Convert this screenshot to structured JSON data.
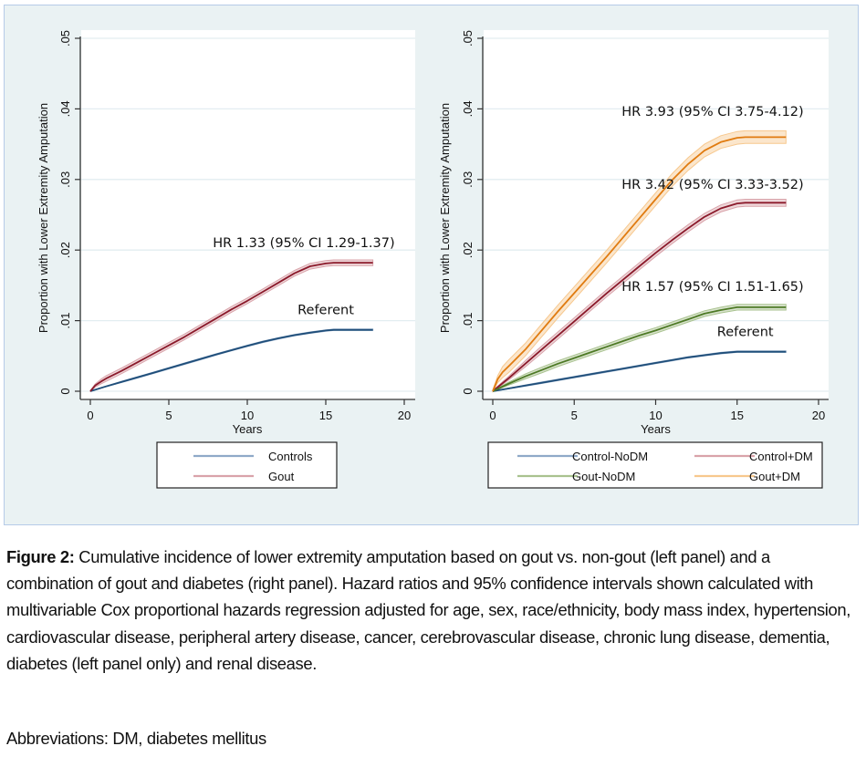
{
  "figure": {
    "caption_label": "Figure 2:",
    "caption_text": "  Cumulative incidence of lower extremity amputation based on gout vs. non-gout (left panel) and a combination of gout and diabetes (right panel).  Hazard ratios and 95% confidence intervals shown calculated with multivariable Cox proportional hazards regression adjusted for age, sex, race/ethnicity, body mass index, hypertension, cardiovascular disease, peripheral artery disease, cancer, cerebrovascular disease, chronic lung disease, dementia, diabetes (left panel only) and renal disease.",
    "abbreviations": "Abbreviations: DM, diabetes mellitus"
  },
  "chart_data": [
    {
      "type": "line",
      "panel": "left",
      "title": "",
      "xlabel": "Years",
      "ylabel": "Proportion with Lower Extremity Amputation",
      "xlim": [
        0,
        20
      ],
      "ylim": [
        0,
        0.05
      ],
      "xticks": [
        0,
        5,
        10,
        15,
        20
      ],
      "xtick_labels": [
        "0",
        "5",
        "10",
        "15",
        "20"
      ],
      "yticks": [
        0,
        0.01,
        0.02,
        0.03,
        0.04,
        0.05
      ],
      "ytick_labels": [
        "0",
        ".01",
        ".02",
        ".03",
        ".04",
        ".05"
      ],
      "grid": "horizontal",
      "legend_position": "bottom",
      "series": [
        {
          "name": "Controls",
          "color": "#1f4e79",
          "band_color": "#8fa9c8",
          "ci_halfwidth": 0.0001,
          "x": [
            0,
            1,
            2,
            3,
            4,
            5,
            6,
            7,
            8,
            9,
            10,
            11,
            12,
            13,
            14,
            15,
            15.5,
            16,
            17,
            18
          ],
          "y": [
            0,
            0.00068,
            0.00133,
            0.00196,
            0.0026,
            0.00325,
            0.0039,
            0.00455,
            0.0052,
            0.00582,
            0.00643,
            0.007,
            0.0075,
            0.00795,
            0.0083,
            0.0086,
            0.0087,
            0.0087,
            0.0087,
            0.0087
          ]
        },
        {
          "name": "Gout",
          "color": "#8b1a2b",
          "band_color": "#d9a3aa",
          "ci_halfwidth": 0.0004,
          "x": [
            0,
            0.3,
            0.7,
            1,
            2,
            3,
            4,
            5,
            6,
            7,
            8,
            9,
            10,
            11,
            12,
            13,
            14,
            15,
            15.5,
            16,
            17,
            18
          ],
          "y": [
            0,
            0.0008,
            0.0014,
            0.0018,
            0.0029,
            0.0041,
            0.0053,
            0.0065,
            0.0077,
            0.009,
            0.0103,
            0.0116,
            0.0128,
            0.0141,
            0.0154,
            0.0167,
            0.0177,
            0.0181,
            0.0182,
            0.0182,
            0.0182,
            0.0182
          ]
        }
      ],
      "annotations": [
        {
          "text": "HR 1.33 (95% CI 1.29-1.37)",
          "x": 13.6,
          "y": 0.0204
        },
        {
          "text": "Referent",
          "x": 15,
          "y": 0.0109
        }
      ]
    },
    {
      "type": "line",
      "panel": "right",
      "title": "",
      "xlabel": "Years",
      "ylabel": "Proportion with Lower Extremity Amputation",
      "xlim": [
        0,
        20
      ],
      "ylim": [
        0,
        0.05
      ],
      "xticks": [
        0,
        5,
        10,
        15,
        20
      ],
      "xtick_labels": [
        "0",
        "5",
        "10",
        "15",
        "20"
      ],
      "yticks": [
        0,
        0.01,
        0.02,
        0.03,
        0.04,
        0.05
      ],
      "ytick_labels": [
        "0",
        ".01",
        ".02",
        ".03",
        ".04",
        ".05"
      ],
      "grid": "horizontal",
      "legend_position": "bottom",
      "series": [
        {
          "name": "Control-NoDM",
          "color": "#1f4e79",
          "band_color": "#8fa9c8",
          "ci_halfwidth": 0.0001,
          "x": [
            0,
            1,
            2,
            3,
            4,
            5,
            6,
            7,
            8,
            9,
            10,
            11,
            12,
            13,
            14,
            15,
            15.5,
            16,
            17,
            18
          ],
          "y": [
            0,
            0.0004,
            0.0008,
            0.0012,
            0.0016,
            0.002,
            0.0024,
            0.0028,
            0.0032,
            0.0036,
            0.004,
            0.0044,
            0.0048,
            0.0051,
            0.0054,
            0.0056,
            0.0056,
            0.0056,
            0.0056,
            0.0056
          ]
        },
        {
          "name": "Control+DM",
          "color": "#8b1a2b",
          "band_color": "#d9a3aa",
          "ci_halfwidth": 0.0005,
          "x": [
            0,
            1,
            2,
            3,
            4,
            5,
            6,
            7,
            8,
            9,
            10,
            11,
            12,
            13,
            14,
            15,
            15.5,
            16,
            17,
            18
          ],
          "y": [
            0,
            0.0019,
            0.0039,
            0.0059,
            0.0079,
            0.0099,
            0.0119,
            0.0139,
            0.0158,
            0.0177,
            0.0196,
            0.0214,
            0.0231,
            0.0247,
            0.0259,
            0.0266,
            0.0267,
            0.0267,
            0.0267,
            0.0267
          ]
        },
        {
          "name": "Gout-NoDM",
          "color": "#4e7a26",
          "band_color": "#a9c28f",
          "ci_halfwidth": 0.0004,
          "x": [
            0,
            1,
            2,
            3,
            4,
            5,
            6,
            7,
            8,
            9,
            10,
            11,
            12,
            13,
            14,
            15,
            15.5,
            16,
            17,
            18
          ],
          "y": [
            0,
            0.0011,
            0.0021,
            0.003,
            0.0039,
            0.0047,
            0.0055,
            0.0063,
            0.0071,
            0.0079,
            0.0086,
            0.0094,
            0.0102,
            0.011,
            0.0115,
            0.0119,
            0.0119,
            0.0119,
            0.0119,
            0.0119
          ]
        },
        {
          "name": "Gout+DM",
          "color": "#e07b10",
          "band_color": "#f7c88e",
          "ci_halfwidth": 0.0009,
          "x": [
            0,
            0.3,
            0.6,
            1,
            2,
            3,
            4,
            5,
            6,
            7,
            8,
            9,
            10,
            11,
            12,
            13,
            14,
            15,
            15.5,
            16,
            17,
            18
          ],
          "y": [
            0,
            0.0017,
            0.0027,
            0.0036,
            0.0059,
            0.0086,
            0.0113,
            0.0139,
            0.0165,
            0.0191,
            0.0218,
            0.0245,
            0.0272,
            0.0299,
            0.0322,
            0.0341,
            0.0353,
            0.0359,
            0.036,
            0.036,
            0.036,
            0.036
          ]
        }
      ],
      "annotations": [
        {
          "text": "HR 3.93 (95% CI 3.75-4.12)",
          "x": 13.5,
          "y": 0.039
        },
        {
          "text": "HR 3.42 (95% CI 3.33-3.52)",
          "x": 13.5,
          "y": 0.0287
        },
        {
          "text": "HR 1.57 (95% CI 1.51-1.65)",
          "x": 13.5,
          "y": 0.0142
        },
        {
          "text": "Referent",
          "x": 15.5,
          "y": 0.0078
        }
      ]
    }
  ]
}
